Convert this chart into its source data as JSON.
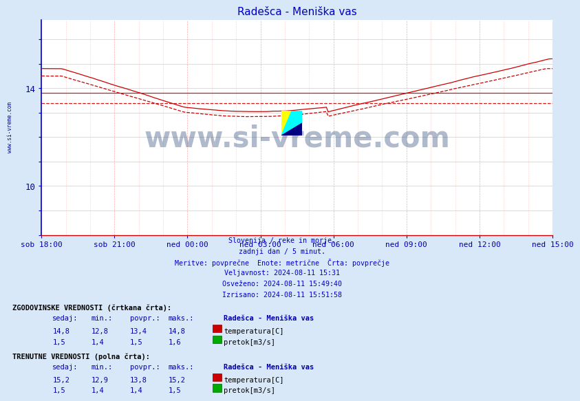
{
  "title": "Radešca - Meniška vas",
  "bg_color": "#d8e8f8",
  "plot_bg_color": "#ffffff",
  "x_labels": [
    "sob 18:00",
    "sob 21:00",
    "ned 00:00",
    "ned 03:00",
    "ned 06:00",
    "ned 09:00",
    "ned 12:00",
    "ned 15:00"
  ],
  "ylim_min": 8.0,
  "ylim_max": 16.8,
  "ytick_labeled": [
    10,
    14
  ],
  "yticks_all": [
    8,
    9,
    10,
    11,
    12,
    13,
    14,
    15,
    16
  ],
  "temp_color": "#cc0000",
  "flow_color": "#00aa00",
  "avg_temp_hist": 13.4,
  "avg_flow_hist": 1.5,
  "avg_temp_curr": 13.8,
  "avg_flow_curr": 1.4,
  "watermark": "www.si-vreme.com",
  "info_lines": [
    "Slovenija / reke in morje.",
    "zadnji dan / 5 minut.",
    "Meritve: povprečne  Enote: metrične  Črta: povprečje",
    "Veljavnost: 2024-08-11 15:31",
    "Osveženo: 2024-08-11 15:49:40",
    "Izrisano: 2024-08-11 15:51:58"
  ],
  "hist_label": "ZGODOVINSKE VREDNOSTI (črtkana črta):",
  "curr_label": "TRENUTNE VREDNOSTI (polna črta):",
  "hist_data_sedaj": [
    14.8,
    1.5
  ],
  "hist_data_min": [
    12.8,
    1.4
  ],
  "hist_data_povpr": [
    13.4,
    1.5
  ],
  "hist_data_maks": [
    14.8,
    1.6
  ],
  "curr_data_sedaj": [
    15.2,
    1.5
  ],
  "curr_data_min": [
    12.9,
    1.4
  ],
  "curr_data_povpr": [
    13.8,
    1.4
  ],
  "curr_data_maks": [
    15.2,
    1.5
  ],
  "station_name": "Radešca - Meniška vas",
  "temp_label": "temperatura[C]",
  "flow_label": "pretok[m3/s]",
  "n_points": 288,
  "grid_color": "#cccccc",
  "vgrid_color": "#ffaaaa",
  "axis_color": "#0000cc",
  "title_color": "#0000cc",
  "info_color": "#0000cc",
  "tick_color": "#0000aa",
  "watermark_color": "#1a3a6e",
  "left_text_color": "#0000aa"
}
